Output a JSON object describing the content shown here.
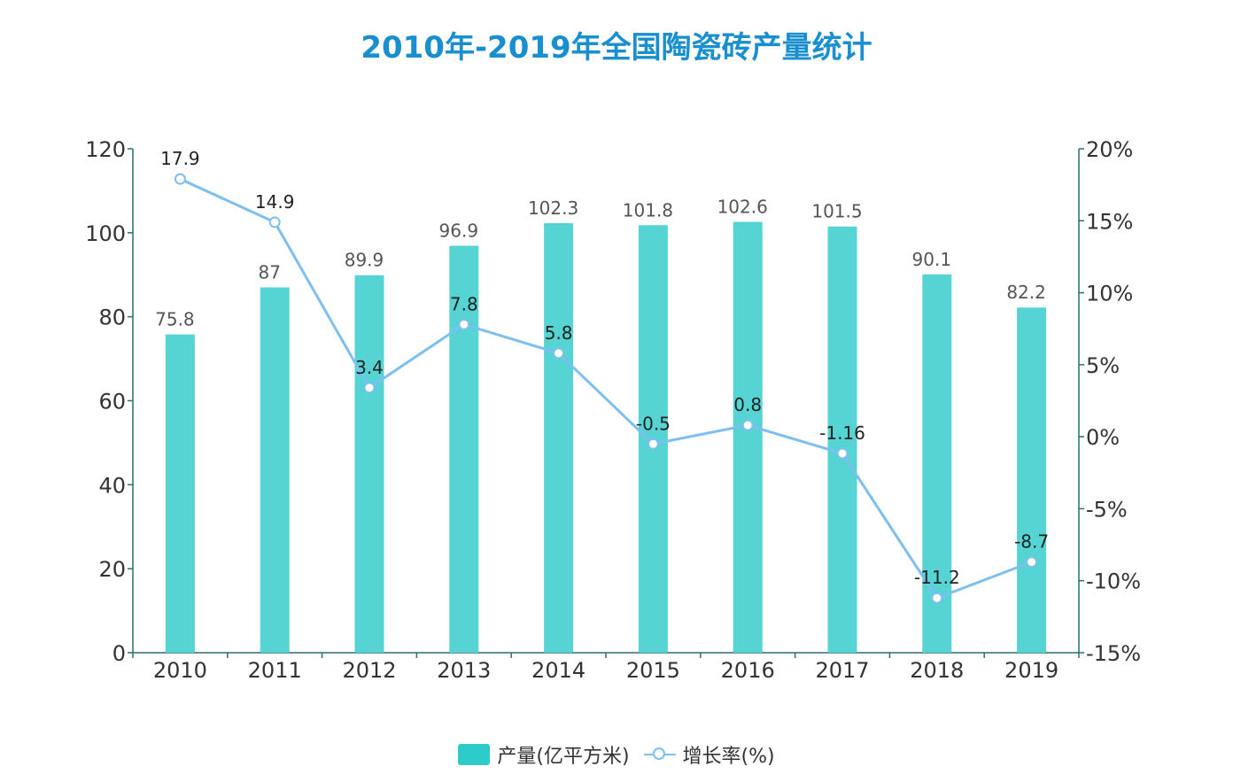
{
  "chart_data": {
    "type": "bar",
    "title": "2010年-2019年全国陶瓷砖产量统计",
    "categories": [
      "2010",
      "2011",
      "2012",
      "2013",
      "2014",
      "2015",
      "2016",
      "2017",
      "2018",
      "2019"
    ],
    "series": [
      {
        "name": "产量(亿平方米)",
        "type": "bar",
        "axis": "left",
        "values": [
          75.8,
          87,
          89.9,
          96.9,
          102.3,
          101.8,
          102.6,
          101.5,
          90.1,
          82.2
        ],
        "labels": [
          "75.8",
          "87",
          "89.9",
          "96.9",
          "102.3",
          "101.8",
          "102.6",
          "101.5",
          "90.1",
          "82.2"
        ],
        "color": "#2ecbcb"
      },
      {
        "name": "增长率(%)",
        "type": "line",
        "axis": "right",
        "values": [
          17.9,
          14.9,
          3.4,
          7.8,
          5.8,
          -0.5,
          0.8,
          -1.16,
          -11.2,
          -8.7
        ],
        "labels": [
          "17.9",
          "14.9",
          "3.4",
          "7.8",
          "5.8",
          "-0.5",
          "0.8",
          "-1.16",
          "-11.2",
          "-8.7"
        ],
        "color": "#7cbff0"
      }
    ],
    "y_left": {
      "ylim": [
        0,
        120
      ],
      "ticks": [
        "0",
        "20",
        "40",
        "60",
        "80",
        "100",
        "120"
      ]
    },
    "y_right": {
      "ylim": [
        -15,
        20
      ],
      "ticks": [
        "-15%",
        "-10%",
        "-5%",
        "0%",
        "5%",
        "10%",
        "15%",
        "20%"
      ]
    },
    "grid": false,
    "legend_position": "bottom-center"
  }
}
